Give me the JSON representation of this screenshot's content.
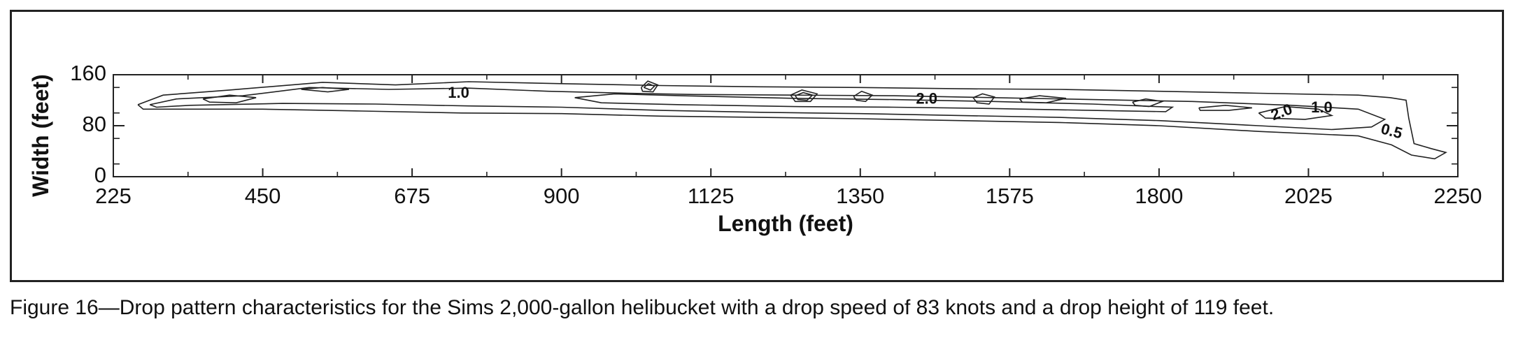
{
  "caption": "Figure 16—Drop pattern characteristics for the Sims 2,000-gallon helibucket with a drop speed of 83 knots and a drop height of 119 feet.",
  "chart_data": {
    "type": "contour",
    "xlabel": "Length (feet)",
    "ylabel": "Width (feet)",
    "xlim": [
      225,
      2250
    ],
    "ylim": [
      0,
      160
    ],
    "x_ticks": [
      225,
      450,
      675,
      900,
      1125,
      1350,
      1575,
      1800,
      2025,
      2250
    ],
    "y_ticks": [
      0,
      80,
      160
    ],
    "contour_labels": [
      {
        "text": "1.0",
        "x": 745,
        "y": 130
      },
      {
        "text": "2.0",
        "x": 1450,
        "y": 121
      },
      {
        "text": "2.0",
        "x": 1985,
        "y": 100
      },
      {
        "text": "1.0",
        "x": 2045,
        "y": 107
      },
      {
        "text": "0.5",
        "x": 2150,
        "y": 70
      }
    ],
    "contours": [
      {
        "level": 0.5,
        "points": [
          [
            262,
            113
          ],
          [
            300,
            128
          ],
          [
            400,
            136
          ],
          [
            540,
            148
          ],
          [
            650,
            144
          ],
          [
            760,
            149
          ],
          [
            900,
            146
          ],
          [
            1050,
            143
          ],
          [
            1200,
            141
          ],
          [
            1350,
            140
          ],
          [
            1500,
            138
          ],
          [
            1650,
            137
          ],
          [
            1800,
            134
          ],
          [
            1950,
            131
          ],
          [
            2100,
            128
          ],
          [
            2148,
            124
          ],
          [
            2172,
            120
          ],
          [
            2176,
            92
          ],
          [
            2184,
            52
          ],
          [
            2210,
            44
          ],
          [
            2232,
            38
          ],
          [
            2215,
            28
          ],
          [
            2180,
            34
          ],
          [
            2150,
            50
          ],
          [
            2100,
            64
          ],
          [
            1950,
            71
          ],
          [
            1800,
            80
          ],
          [
            1650,
            85
          ],
          [
            1500,
            88
          ],
          [
            1350,
            91
          ],
          [
            1200,
            93
          ],
          [
            1050,
            95
          ],
          [
            900,
            99
          ],
          [
            750,
            100
          ],
          [
            600,
            103
          ],
          [
            450,
            106
          ],
          [
            320,
            106
          ],
          [
            270,
            106
          ],
          [
            262,
            113
          ]
        ]
      },
      {
        "level": 1.0,
        "points": [
          [
            280,
            113
          ],
          [
            320,
            122
          ],
          [
            420,
            127
          ],
          [
            520,
            140
          ],
          [
            640,
            137
          ],
          [
            760,
            139
          ],
          [
            880,
            134
          ],
          [
            1000,
            131
          ],
          [
            1100,
            129
          ],
          [
            1250,
            128
          ],
          [
            1400,
            127
          ],
          [
            1550,
            124
          ],
          [
            1700,
            121
          ],
          [
            1850,
            118
          ],
          [
            2000,
            112
          ],
          [
            2100,
            106
          ],
          [
            2140,
            90
          ],
          [
            2120,
            78
          ],
          [
            2060,
            74
          ],
          [
            1950,
            80
          ],
          [
            1800,
            88
          ],
          [
            1650,
            93
          ],
          [
            1500,
            96
          ],
          [
            1350,
            99
          ],
          [
            1200,
            101
          ],
          [
            1050,
            104
          ],
          [
            900,
            109
          ],
          [
            760,
            111
          ],
          [
            620,
            114
          ],
          [
            480,
            115
          ],
          [
            340,
            112
          ],
          [
            290,
            109
          ],
          [
            280,
            113
          ]
        ]
      },
      {
        "level": 2.0,
        "points": [
          [
            1950,
            100
          ],
          [
            1990,
            110
          ],
          [
            2040,
            106
          ],
          [
            2060,
            96
          ],
          [
            2020,
            90
          ],
          [
            1960,
            92
          ],
          [
            1950,
            100
          ]
        ]
      },
      {
        "level": 2.0,
        "points": [
          [
            920,
            124
          ],
          [
            980,
            130
          ],
          [
            1080,
            127
          ],
          [
            1250,
            123
          ],
          [
            1400,
            121
          ],
          [
            1550,
            118
          ],
          [
            1700,
            114
          ],
          [
            1820,
            109
          ],
          [
            1810,
            102
          ],
          [
            1700,
            104
          ],
          [
            1550,
            107
          ],
          [
            1400,
            109
          ],
          [
            1250,
            110
          ],
          [
            1080,
            113
          ],
          [
            960,
            116
          ],
          [
            920,
            124
          ]
        ]
      },
      {
        "level": 3.0,
        "points": [
          [
            360,
            122
          ],
          [
            400,
            128
          ],
          [
            440,
            124
          ],
          [
            410,
            116
          ],
          [
            370,
            117
          ],
          [
            360,
            122
          ]
        ]
      },
      {
        "level": 3.0,
        "points": [
          [
            508,
            137
          ],
          [
            540,
            140
          ],
          [
            580,
            137
          ],
          [
            548,
            133
          ],
          [
            508,
            137
          ]
        ]
      },
      {
        "level": 3.0,
        "points": [
          [
            1020,
            140
          ],
          [
            1030,
            150
          ],
          [
            1045,
            144
          ],
          [
            1038,
            133
          ],
          [
            1022,
            134
          ],
          [
            1020,
            140
          ]
        ]
      },
      {
        "level": 3.0,
        "points": [
          [
            1024,
            140
          ],
          [
            1031,
            146
          ],
          [
            1040,
            142
          ],
          [
            1034,
            136
          ],
          [
            1024,
            140
          ]
        ]
      },
      {
        "level": 3.0,
        "points": [
          [
            1245,
            128
          ],
          [
            1262,
            136
          ],
          [
            1285,
            130
          ],
          [
            1275,
            118
          ],
          [
            1252,
            118
          ],
          [
            1245,
            128
          ]
        ]
      },
      {
        "level": 3.0,
        "points": [
          [
            1252,
            127
          ],
          [
            1264,
            132
          ],
          [
            1278,
            128
          ],
          [
            1270,
            120
          ],
          [
            1256,
            121
          ],
          [
            1252,
            127
          ]
        ]
      },
      {
        "level": 3.0,
        "points": [
          [
            1340,
            126
          ],
          [
            1352,
            134
          ],
          [
            1368,
            128
          ],
          [
            1358,
            118
          ],
          [
            1344,
            120
          ],
          [
            1340,
            126
          ]
        ]
      },
      {
        "level": 3.0,
        "points": [
          [
            1520,
            124
          ],
          [
            1534,
            130
          ],
          [
            1552,
            125
          ],
          [
            1544,
            114
          ],
          [
            1526,
            116
          ],
          [
            1520,
            124
          ]
        ]
      },
      {
        "level": 3.0,
        "points": [
          [
            1590,
            122
          ],
          [
            1620,
            127
          ],
          [
            1660,
            123
          ],
          [
            1630,
            116
          ],
          [
            1594,
            117
          ],
          [
            1590,
            122
          ]
        ]
      },
      {
        "level": 3.0,
        "points": [
          [
            1760,
            117
          ],
          [
            1780,
            122
          ],
          [
            1805,
            118
          ],
          [
            1785,
            110
          ],
          [
            1764,
            112
          ],
          [
            1760,
            117
          ]
        ]
      },
      {
        "level": 3.0,
        "points": [
          [
            1860,
            108
          ],
          [
            1900,
            112
          ],
          [
            1940,
            108
          ],
          [
            1905,
            104
          ],
          [
            1862,
            104
          ],
          [
            1860,
            108
          ]
        ]
      }
    ]
  }
}
